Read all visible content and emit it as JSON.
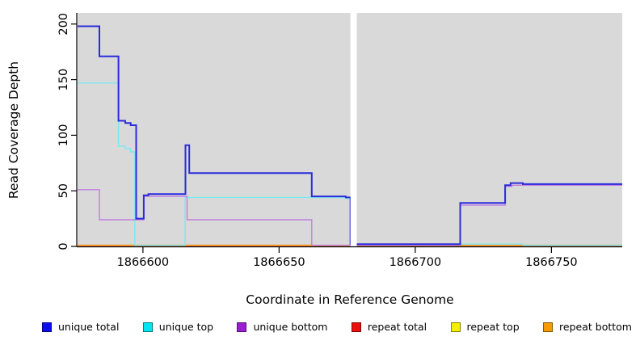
{
  "chart_data": {
    "type": "line",
    "subtype": "step",
    "title": "",
    "xlabel": "Coordinate in Reference Genome",
    "ylabel": "Read Coverage Depth",
    "xlim": [
      1866576,
      1866776
    ],
    "ylim": [
      0,
      210
    ],
    "xticks": [
      1866600,
      1866650,
      1866700,
      1866750
    ],
    "yticks": [
      0,
      50,
      100,
      150,
      200
    ],
    "grid": false,
    "legend_position": "bottom",
    "plot_bg": "#d9d9d9",
    "axis_color": "#000000",
    "gap": {
      "from": 1866676.2,
      "to": 1866678.5,
      "color": "#ffffff"
    },
    "series": [
      {
        "name": "unique total",
        "legend_color": "#0d0dee",
        "line_color": "#2b2bdc",
        "line_width": 2,
        "z": 5,
        "steps": [
          [
            1866576,
            198
          ],
          [
            1866584,
            171
          ],
          [
            1866591,
            113
          ],
          [
            1866593.5,
            111
          ],
          [
            1866595.5,
            109
          ],
          [
            1866597.5,
            25
          ],
          [
            1866600.3,
            46
          ],
          [
            1866602,
            47
          ],
          [
            1866615.6,
            91
          ],
          [
            1866617,
            66
          ],
          [
            1866662,
            45
          ],
          [
            1866674.5,
            44
          ],
          [
            1866676.2,
            2
          ],
          [
            1866716.5,
            39
          ],
          [
            1866733,
            55
          ],
          [
            1866735,
            57
          ],
          [
            1866739.5,
            56
          ]
        ]
      },
      {
        "name": "unique top",
        "legend_color": "#00e5f0",
        "line_color": "#7ce8f0",
        "line_width": 1.4,
        "z": 3,
        "steps": [
          [
            1866576,
            147
          ],
          [
            1866591,
            90
          ],
          [
            1866593.5,
            88
          ],
          [
            1866595.5,
            85
          ],
          [
            1866597,
            1
          ],
          [
            1866615.5,
            44
          ],
          [
            1866674.5,
            43
          ],
          [
            1866676.2,
            2
          ],
          [
            1866739.5,
            1
          ]
        ]
      },
      {
        "name": "unique bottom",
        "legend_color": "#9b1fd0",
        "line_color": "#bf7fe0",
        "line_width": 1.4,
        "z": 4,
        "steps": [
          [
            1866576,
            51
          ],
          [
            1866584,
            24
          ],
          [
            1866600.3,
            45
          ],
          [
            1866616.2,
            24
          ],
          [
            1866662,
            1
          ],
          [
            1866716.5,
            37
          ],
          [
            1866733,
            54
          ],
          [
            1866735.5,
            55
          ]
        ]
      },
      {
        "name": "repeat total",
        "legend_color": "#ea1010",
        "line_color": "#dd6080",
        "line_width": 1.4,
        "z": 1,
        "steps": [
          [
            1866576,
            0.6
          ]
        ]
      },
      {
        "name": "repeat top",
        "legend_color": "#f5ee00",
        "line_color": "#f5ee00",
        "line_width": 1.2,
        "z": 0,
        "steps": [
          [
            1866576,
            0
          ]
        ]
      },
      {
        "name": "repeat bottom",
        "legend_color": "#f59b00",
        "line_color": "#ff9d1e",
        "line_width": 1.6,
        "z": 2,
        "steps": [
          [
            1866576,
            1
          ],
          [
            1866662,
            0
          ],
          [
            1866716.5,
            1
          ],
          [
            1866739.5,
            1
          ]
        ]
      }
    ]
  }
}
